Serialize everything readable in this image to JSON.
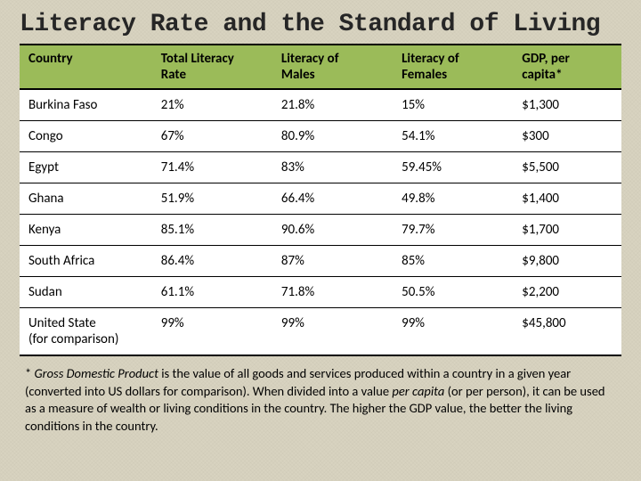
{
  "title": "Literacy Rate and the Standard of Living",
  "table": {
    "columns": [
      {
        "line1": "Country",
        "line2": ""
      },
      {
        "line1": "Total Literacy",
        "line2": "Rate"
      },
      {
        "line1": "Literacy of",
        "line2": "Males"
      },
      {
        "line1": "Literacy of",
        "line2": "Females"
      },
      {
        "line1": "GDP, per",
        "line2": "capita*"
      }
    ],
    "rows": [
      {
        "country": "Burkina Faso",
        "sub": "",
        "total": "21%",
        "males": "21.8%",
        "females": "15%",
        "gdp": "$1,300"
      },
      {
        "country": "Congo",
        "sub": "",
        "total": "67%",
        "males": "80.9%",
        "females": "54.1%",
        "gdp": "$300"
      },
      {
        "country": "Egypt",
        "sub": "",
        "total": "71.4%",
        "males": "83%",
        "females": "59.45%",
        "gdp": "$5,500"
      },
      {
        "country": "Ghana",
        "sub": "",
        "total": "51.9%",
        "males": "66.4%",
        "females": "49.8%",
        "gdp": "$1,400"
      },
      {
        "country": "Kenya",
        "sub": "",
        "total": "85.1%",
        "males": "90.6%",
        "females": "79.7%",
        "gdp": "$1,700"
      },
      {
        "country": "South Africa",
        "sub": "",
        "total": "86.4%",
        "males": "87%",
        "females": "85%",
        "gdp": "$9,800"
      },
      {
        "country": "Sudan",
        "sub": "",
        "total": "61.1%",
        "males": "71.8%",
        "females": "50.5%",
        "gdp": "$2,200"
      },
      {
        "country": "United State",
        "sub": "(for comparison)",
        "total": "99%",
        "males": "99%",
        "females": "99%",
        "gdp": "$45,800"
      }
    ],
    "header_bg": "#9bbb59",
    "body_bg": "#ffffff",
    "border_color": "#000000",
    "page_bg": "#d8d3c0",
    "header_fontsize": 15,
    "cell_fontsize": 15
  },
  "footnote": {
    "prefix": "* ",
    "term": "Gross Domestic Product",
    "rest": " is the value of all goods and services produced within a country in a given year (converted into US dollars for comparison).  When divided into a value ",
    "per_capita": "per capita",
    "rest2": " (or per person), it can be used as a measure of wealth or living conditions in the country.  The higher the GDP value, the better the living conditions in the country."
  }
}
